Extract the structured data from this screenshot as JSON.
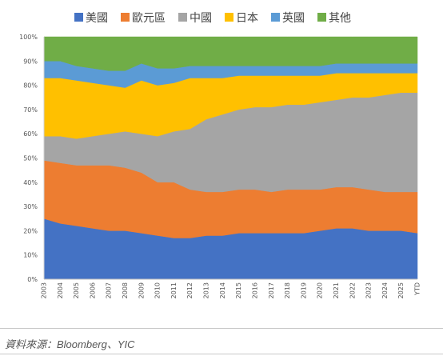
{
  "chart_data": {
    "type": "area",
    "stacked": true,
    "normalized": true,
    "title": "",
    "xlabel": "",
    "ylabel": "",
    "ylim": [
      0,
      100
    ],
    "y_ticks": [
      "0%",
      "10%",
      "20%",
      "30%",
      "40%",
      "50%",
      "60%",
      "70%",
      "80%",
      "90%",
      "100%"
    ],
    "categories": [
      "2003",
      "2004",
      "2005",
      "2006",
      "2007",
      "2008",
      "2009",
      "2010",
      "2011",
      "2012",
      "2013",
      "2014",
      "2015",
      "2016",
      "2017",
      "2018",
      "2019",
      "2020",
      "2021",
      "2022",
      "2023",
      "2024",
      "2025",
      "YTD"
    ],
    "legend_position": "top",
    "grid": false,
    "series": [
      {
        "name": "美國",
        "color": "#4472c4",
        "values": [
          25,
          23,
          22,
          21,
          20,
          20,
          19,
          18,
          17,
          17,
          18,
          18,
          19,
          19,
          19,
          19,
          19,
          20,
          21,
          21,
          20,
          20,
          20,
          19
        ]
      },
      {
        "name": "歐元區",
        "color": "#ed7d31",
        "values": [
          24,
          25,
          25,
          26,
          27,
          26,
          25,
          22,
          23,
          20,
          18,
          18,
          18,
          18,
          17,
          18,
          18,
          17,
          17,
          17,
          17,
          16,
          16,
          17
        ]
      },
      {
        "name": "中國",
        "color": "#a5a5a5",
        "values": [
          10,
          11,
          11,
          12,
          13,
          15,
          16,
          19,
          21,
          25,
          30,
          32,
          33,
          34,
          35,
          35,
          35,
          36,
          36,
          37,
          38,
          40,
          41,
          41
        ]
      },
      {
        "name": "日本",
        "color": "#ffc000",
        "values": [
          24,
          24,
          24,
          22,
          20,
          18,
          22,
          21,
          20,
          21,
          17,
          15,
          14,
          13,
          13,
          12,
          12,
          11,
          11,
          10,
          10,
          9,
          8,
          8
        ]
      },
      {
        "name": "英國",
        "color": "#5b9bd5",
        "values": [
          7,
          7,
          6,
          6,
          6,
          7,
          7,
          7,
          6,
          5,
          5,
          5,
          4,
          4,
          4,
          4,
          4,
          4,
          4,
          4,
          4,
          4,
          4,
          4
        ]
      },
      {
        "name": "其他",
        "color": "#70ad47",
        "values": [
          10,
          10,
          12,
          13,
          14,
          14,
          11,
          13,
          13,
          12,
          12,
          12,
          12,
          12,
          12,
          12,
          12,
          12,
          11,
          11,
          11,
          11,
          11,
          11
        ]
      }
    ]
  },
  "source": "資料來源：Bloomberg、YIC"
}
